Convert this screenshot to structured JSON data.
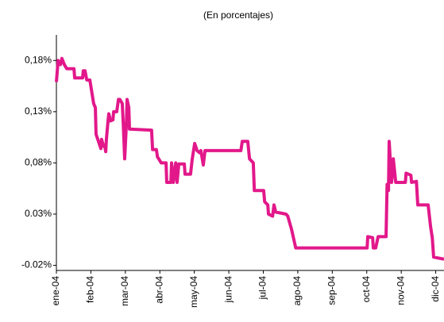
{
  "chart_data": {
    "type": "line",
    "subtitle": "(En porcentajes)",
    "x": [
      0,
      0.05,
      0.12,
      0.16,
      0.23,
      0.3,
      0.51,
      0.53,
      0.76,
      0.78,
      0.83,
      0.88,
      0.97,
      1.08,
      1.13,
      1.15,
      1.24,
      1.29,
      1.31,
      1.36,
      1.41,
      1.43,
      1.45,
      1.5,
      1.52,
      1.57,
      1.64,
      1.66,
      1.75,
      1.8,
      1.84,
      1.91,
      1.94,
      1.98,
      2.03,
      2.05,
      2.1,
      2.12,
      2.76,
      2.79,
      2.9,
      2.93,
      3.04,
      3.18,
      3.2,
      3.32,
      3.34,
      3.39,
      3.46,
      3.5,
      3.55,
      3.71,
      3.73,
      3.89,
      3.94,
      4.01,
      4.08,
      4.15,
      4.19,
      4.26,
      4.31,
      5.35,
      5.39,
      5.55,
      5.6,
      5.71,
      5.74,
      6.01,
      6.04,
      6.13,
      6.15,
      6.27,
      6.31,
      6.36,
      6.66,
      6.71,
      6.82,
      6.94,
      9.01,
      9.03,
      9.17,
      9.19,
      9.26,
      9.33,
      9.56,
      9.59,
      9.63,
      9.65,
      9.72,
      9.77,
      9.84,
      10.12,
      10.14,
      10.28,
      10.3,
      10.44,
      10.48,
      10.78,
      10.85,
      10.9,
      10.94,
      11.24
    ],
    "series": [
      {
        "color": "#e2188a",
        "values": [
          0.159,
          0.18,
          0.176,
          0.182,
          0.176,
          0.172,
          0.172,
          0.163,
          0.163,
          0.17,
          0.17,
          0.161,
          0.161,
          0.138,
          0.134,
          0.108,
          0.099,
          0.094,
          0.103,
          0.097,
          0.095,
          0.091,
          0.103,
          0.122,
          0.128,
          0.121,
          0.122,
          0.13,
          0.13,
          0.142,
          0.142,
          0.138,
          0.118,
          0.084,
          0.118,
          0.142,
          0.134,
          0.113,
          0.112,
          0.093,
          0.093,
          0.086,
          0.08,
          0.08,
          0.061,
          0.061,
          0.08,
          0.061,
          0.08,
          0.061,
          0.079,
          0.079,
          0.069,
          0.069,
          0.084,
          0.099,
          0.092,
          0.09,
          0.092,
          0.078,
          0.092,
          0.092,
          0.101,
          0.101,
          0.084,
          0.08,
          0.053,
          0.053,
          0.042,
          0.039,
          0.03,
          0.028,
          0.039,
          0.032,
          0.03,
          0.028,
          0.015,
          -0.003,
          -0.003,
          0.008,
          0.007,
          -0.003,
          -0.003,
          0.008,
          0.008,
          0.059,
          0.053,
          0.101,
          0.061,
          0.084,
          0.061,
          0.061,
          0.07,
          0.068,
          0.061,
          0.062,
          0.039,
          0.039,
          0.018,
          0.007,
          -0.012,
          -0.014
        ]
      }
    ],
    "xlim": [
      0,
      11.24
    ],
    "xticks": [
      {
        "value": 0,
        "label": "ene-04"
      },
      {
        "value": 1,
        "label": "feb-04"
      },
      {
        "value": 2,
        "label": "mar-04"
      },
      {
        "value": 3,
        "label": "abr-04"
      },
      {
        "value": 4,
        "label": "may-04"
      },
      {
        "value": 5,
        "label": "jun-04"
      },
      {
        "value": 6,
        "label": "jul-04"
      },
      {
        "value": 7,
        "label": "ago-04"
      },
      {
        "value": 8,
        "label": "sep-04"
      },
      {
        "value": 9,
        "label": "oct-04"
      },
      {
        "value": 10,
        "label": "nov-04"
      },
      {
        "value": 11,
        "label": "dic-04"
      }
    ],
    "ylim": [
      -0.025,
      0.205
    ],
    "yticks": [
      {
        "value": -0.02,
        "label": "-0.02%"
      },
      {
        "value": 0.03,
        "label": "0.03%"
      },
      {
        "value": 0.08,
        "label": "0,08%"
      },
      {
        "value": 0.13,
        "label": "0,13%"
      },
      {
        "value": 0.18,
        "label": "0,18%"
      }
    ],
    "grid": false
  }
}
